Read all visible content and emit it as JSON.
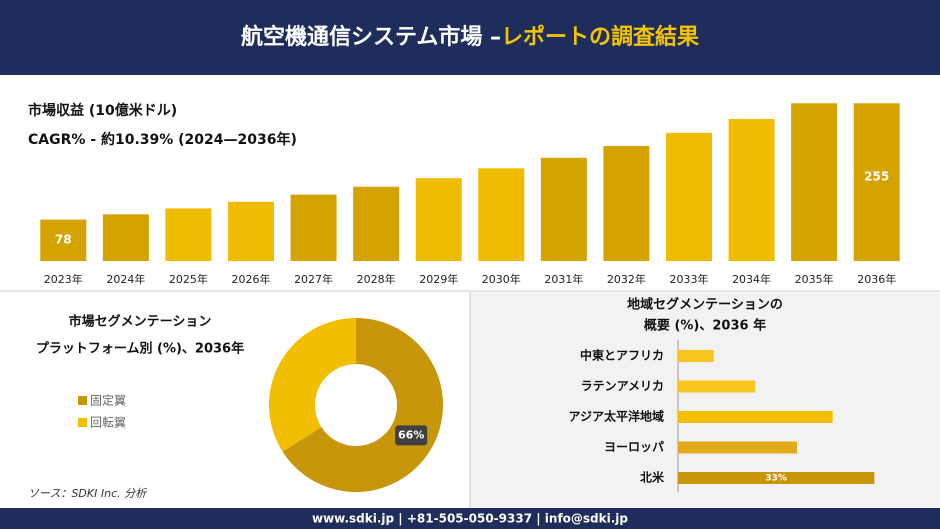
{
  "header": {
    "title": "航空機通信システム市場 –",
    "title_highlight": "レポートの調査結果"
  },
  "chart_data": [
    {
      "type": "bar",
      "title": "市場収益 (10億米ドル)",
      "subtitle": "CAGR% - 約10.39% (2024—2036年)",
      "categories": [
        "2023年",
        "2024年",
        "2025年",
        "2026年",
        "2027年",
        "2028年",
        "2029年",
        "2030年",
        "2031年",
        "2032年",
        "2033年",
        "2034年",
        "2035年",
        "2036年"
      ],
      "values": [
        78,
        86,
        95,
        105,
        116,
        128,
        141,
        156,
        172,
        190,
        210,
        231,
        255,
        255
      ],
      "value_labels": [
        "78",
        null,
        null,
        null,
        null,
        null,
        null,
        null,
        null,
        null,
        null,
        null,
        null,
        "255"
      ],
      "colors": [
        "#d4a300",
        "#f0bc00"
      ],
      "ylim": [
        15,
        260
      ]
    },
    {
      "type": "donut",
      "title": [
        "市場セグメンテーション",
        "プラットフォーム別 (%)、2036年"
      ],
      "categories": [
        "固定翼",
        "回転翼"
      ],
      "values": [
        66,
        34
      ],
      "value_labels": [
        "66%",
        null
      ],
      "colors": [
        "#c8960a",
        "#f2be00"
      ]
    },
    {
      "type": "hbar",
      "title": [
        "地域セグメンテーションの",
        "概要 (%)、2036 年"
      ],
      "categories": [
        "中東とアフリカ",
        "ラテンアメリカ",
        "アジア太平洋地域",
        "ヨーロッパ",
        "北米"
      ],
      "values": [
        6,
        13,
        26,
        20,
        33
      ],
      "value_labels": [
        null,
        null,
        null,
        null,
        "33%"
      ],
      "colors": [
        "#f7c51e",
        "#f7c51e",
        "#f2be00",
        "#e3aa1c",
        "#c8960a"
      ],
      "xlim": [
        0,
        40
      ]
    }
  ],
  "source": "ソース：SDKI Inc. 分析",
  "footer": "www.sdki.jp | +81-505-050-9337 | info@sdki.jp"
}
